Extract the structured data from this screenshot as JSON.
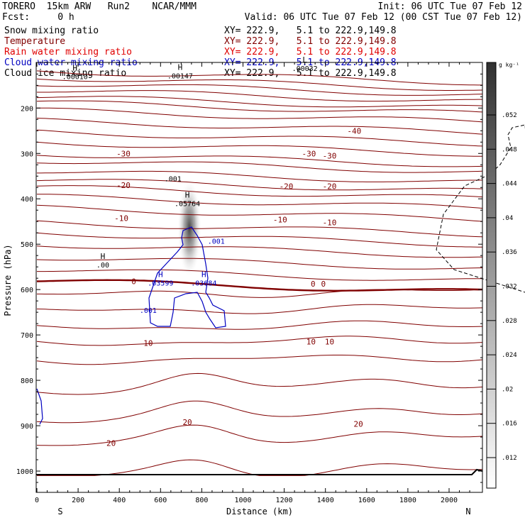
{
  "header": {
    "model": "TORERO  15km ARW   Run2    NCAR/MMM",
    "init": "Init: 06 UTC Tue 07 Feb 12",
    "fcst": "Fcst:     0 h",
    "valid": "Valid: 06 UTC Tue 07 Feb 12 (00 CST Tue 07 Feb 12)"
  },
  "colors": {
    "snow": "#000000",
    "temperature": "#800000",
    "rain": "#e00000",
    "cloud_water": "#0000c0",
    "cloud_ice": "#000000"
  },
  "chart_data": {
    "type": "contour",
    "xlabel": "Distance (km)",
    "ylabel": "Pressure (hPa)",
    "xlim": [
      0,
      2150
    ],
    "ylim": [
      1050,
      100
    ],
    "x_ticks": [
      0,
      200,
      400,
      600,
      800,
      1000,
      1200,
      1400,
      1600,
      1800,
      2000
    ],
    "x_tick_labels": [
      "0",
      "200",
      "400",
      "600",
      "800",
      "1000",
      "1200",
      "1400",
      "1600",
      "1800",
      "2000"
    ],
    "y_ticks": [
      200,
      300,
      400,
      500,
      600,
      700,
      800,
      900,
      1000
    ],
    "y_tick_labels": [
      "200",
      "300",
      "400",
      "500",
      "600",
      "700",
      "800",
      "900",
      "1000"
    ],
    "x_end_labels": {
      "left": "S",
      "right": "N"
    },
    "fields": [
      {
        "name": "Snow mixing ratio",
        "range": "XY= 222.9,   5.1 to 222.9,149.8",
        "color": "#000000"
      },
      {
        "name": "Temperature",
        "range": "XY= 222.9,   5.1 to 222.9,149.8",
        "color": "#800000"
      },
      {
        "name": "Rain water mixing ratio",
        "range": "XY= 222.9,   5.1 to 222.9,149.8",
        "color": "#e00000"
      },
      {
        "name": "Cloud water mixing ratio",
        "range": "XY= 222.9,   5.1 to 222.9,149.8",
        "color": "#0000c0"
      },
      {
        "name": "Cloud ice mixing ratio",
        "range": "XY= 222.9,   5.1 to 222.9,149.8",
        "color": "#000000"
      }
    ],
    "temperature_labels": [
      {
        "text": "-40",
        "x": 1540,
        "p": 250
      },
      {
        "text": "-30",
        "x": 420,
        "p": 300
      },
      {
        "text": "-30",
        "x": 1320,
        "p": 300
      },
      {
        "text": "-30",
        "x": 1420,
        "p": 305
      },
      {
        "text": "-20",
        "x": 420,
        "p": 370
      },
      {
        "text": "-20",
        "x": 1210,
        "p": 372
      },
      {
        "text": "-20",
        "x": 1420,
        "p": 372
      },
      {
        "text": "-10",
        "x": 410,
        "p": 443
      },
      {
        "text": "-10",
        "x": 1180,
        "p": 446
      },
      {
        "text": "-10",
        "x": 1420,
        "p": 452
      },
      {
        "text": "0",
        "x": 470,
        "p": 582
      },
      {
        "text": "0",
        "x": 1340,
        "p": 587
      },
      {
        "text": "0",
        "x": 1390,
        "p": 587
      },
      {
        "text": "10",
        "x": 540,
        "p": 718
      },
      {
        "text": "10",
        "x": 1330,
        "p": 715
      },
      {
        "text": "10",
        "x": 1420,
        "p": 715
      },
      {
        "text": "20",
        "x": 360,
        "p": 938
      },
      {
        "text": "20",
        "x": 730,
        "p": 892
      },
      {
        "text": "20",
        "x": 1560,
        "p": 896
      }
    ],
    "temperature_levels_p_at_x0": [
      118,
      132,
      145,
      160,
      175,
      187,
      205,
      228,
      252,
      275,
      300,
      315,
      338,
      358,
      374,
      395,
      420,
      452,
      475,
      500,
      528,
      555,
      580,
      612,
      648,
      685,
      718,
      757,
      822,
      885,
      938,
      1012
    ],
    "extrema_labels": [
      {
        "mark": "H",
        "value": ".00010",
        "x": 185,
        "p": 130,
        "color": "#000000"
      },
      {
        "mark": "H",
        "value": ".00147",
        "x": 695,
        "p": 128,
        "color": "#000000"
      },
      {
        "mark": "L",
        "value": ".00032",
        "x": 1300,
        "p": 112,
        "color": "#000000"
      },
      {
        "mark": "",
        "value": ".001",
        "x": 660,
        "p": 355,
        "color": "#000000"
      },
      {
        "mark": "H",
        "value": ".05764",
        "x": 730,
        "p": 410,
        "color": "#000000"
      },
      {
        "mark": "H",
        "value": ".00",
        "x": 320,
        "p": 545,
        "color": "#000000"
      },
      {
        "mark": "",
        "value": ".001",
        "x": 870,
        "p": 493,
        "color": "#0000c0"
      },
      {
        "mark": "H",
        "value": ".03599",
        "x": 600,
        "p": 585,
        "color": "#0000c0"
      },
      {
        "mark": "H",
        "value": ".03684",
        "x": 810,
        "p": 585,
        "color": "#0000c0"
      },
      {
        "mark": "",
        "value": ".001",
        "x": 540,
        "p": 645,
        "color": "#0000c0"
      }
    ],
    "snow_max": {
      "x": 740,
      "p_top": 370,
      "p_bottom": 560,
      "value": 0.05764
    },
    "colorbar": {
      "unit": "g kg⁻¹",
      "ticks": [
        ".052",
        ".048",
        ".044",
        ".04",
        ".036",
        ".032",
        ".028",
        ".024",
        ".02",
        ".016",
        ".012"
      ]
    }
  }
}
